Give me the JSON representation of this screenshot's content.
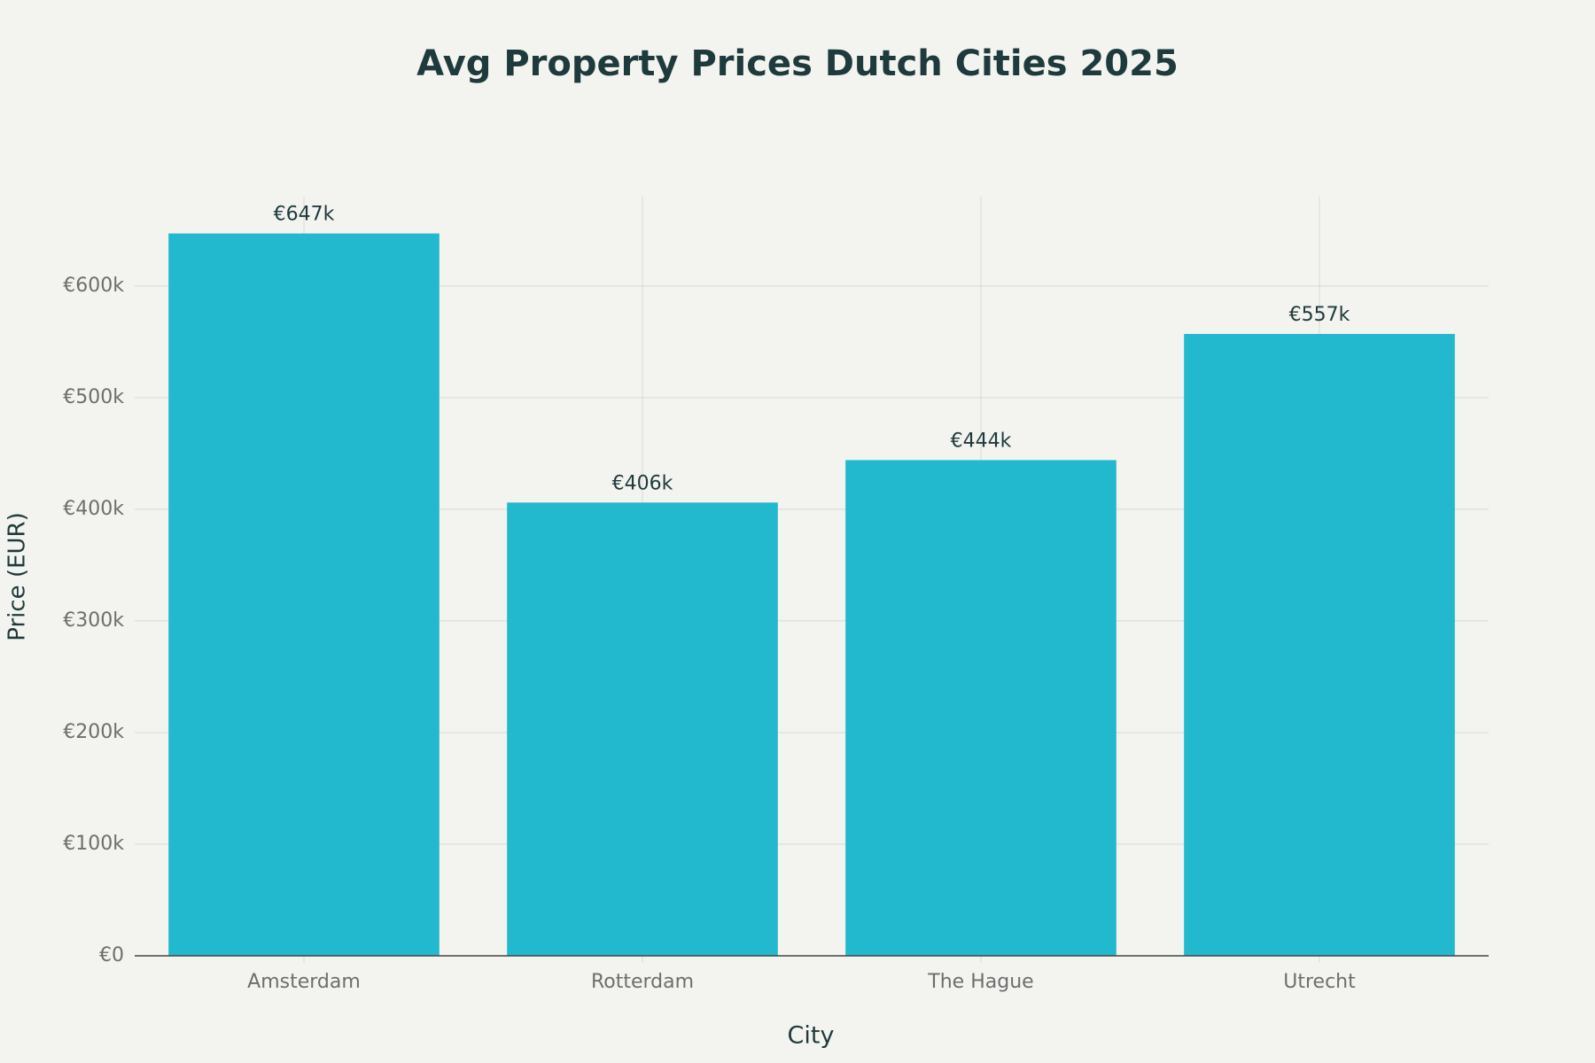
{
  "chart_data": {
    "type": "bar",
    "title": "Avg Property Prices Dutch Cities 2025",
    "x_label": "City",
    "y_label": "Price (EUR)",
    "categories": [
      "Amsterdam",
      "Rotterdam",
      "The Hague",
      "Utrecht"
    ],
    "values": [
      647000,
      406000,
      444000,
      557000
    ],
    "value_labels": [
      "€647k",
      "€406k",
      "€444k",
      "€557k"
    ],
    "color": "#22b8cd",
    "ylim": [
      0,
      680000
    ],
    "yticks": [
      {
        "value": 0,
        "label": "€0"
      },
      {
        "value": 100000,
        "label": "€100k"
      },
      {
        "value": 200000,
        "label": "€200k"
      },
      {
        "value": 300000,
        "label": "€300k"
      },
      {
        "value": 400000,
        "label": "€400k"
      },
      {
        "value": 500000,
        "label": "€500k"
      },
      {
        "value": 600000,
        "label": "€600k"
      }
    ],
    "grid": true
  }
}
